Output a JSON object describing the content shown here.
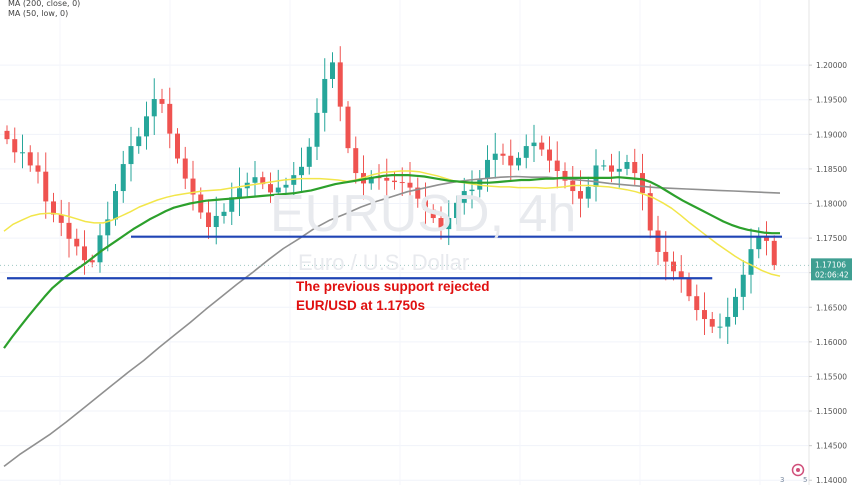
{
  "legend": {
    "ma200": "MA (200, close, 0)",
    "ma50": "MA (50, low, 0)"
  },
  "watermark": {
    "symbol": "EURUSD, 4h",
    "description": "Euro / U.S. Dollar"
  },
  "annotation": {
    "line1": "The previous support rejected",
    "line2": "EUR/USD at 1.1750s"
  },
  "price_label": {
    "value": "1.17106",
    "countdown": "02:06:42"
  },
  "colors": {
    "up": "#26a69a",
    "down": "#ef5350",
    "ma50": "#2ca02c",
    "ma_yellow": "#f2e64a",
    "ma200": "#909090",
    "level_line": "#1f44b5",
    "annotation": "#e01010"
  },
  "chart_data": {
    "type": "candlestick",
    "y_ticks": [
      "1.20000",
      "1.19500",
      "1.19000",
      "1.18500",
      "1.18000",
      "1.17500",
      "1.17000",
      "1.16500",
      "1.16000",
      "1.15500",
      "1.15000",
      "1.14500",
      "1.14000"
    ],
    "ylim": [
      1.1396,
      1.2045
    ],
    "levels": [
      {
        "name": "resistance",
        "price": 1.1752,
        "from_bar": 16,
        "to_bar": 100
      },
      {
        "name": "support",
        "price": 1.1692,
        "from_bar": 0,
        "to_bar": 91
      }
    ],
    "last_price": 1.17106,
    "closes": [
      1.1893,
      1.1874,
      1.1874,
      1.1855,
      1.1846,
      1.1803,
      1.1784,
      1.1772,
      1.1749,
      1.1738,
      1.1718,
      1.1715,
      1.1754,
      1.1777,
      1.1818,
      1.1857,
      1.1883,
      1.1897,
      1.1926,
      1.1951,
      1.1944,
      1.1901,
      1.1865,
      1.1836,
      1.1813,
      1.1787,
      1.1766,
      1.1782,
      1.1788,
      1.1809,
      1.1822,
      1.183,
      1.1838,
      1.1828,
      1.1816,
      1.1823,
      1.1827,
      1.1841,
      1.1853,
      1.1882,
      1.1931,
      1.198,
      1.2004,
      1.194,
      1.188,
      1.1844,
      1.1829,
      1.1838,
      1.1837,
      1.1833,
      1.1831,
      1.183,
      1.1823,
      1.1807,
      1.1791,
      1.1779,
      1.1763,
      1.1779,
      1.1801,
      1.1818,
      1.182,
      1.1836,
      1.1863,
      1.1872,
      1.1869,
      1.1855,
      1.1866,
      1.1883,
      1.1888,
      1.1878,
      1.1862,
      1.1847,
      1.1833,
      1.1818,
      1.1807,
      1.1824,
      1.1855,
      1.1855,
      1.1846,
      1.185,
      1.186,
      1.1844,
      1.1815,
      1.1761,
      1.173,
      1.1716,
      1.1702,
      1.1692,
      1.1666,
      1.1646,
      1.1633,
      1.1622,
      1.1622,
      1.1636,
      1.1665,
      1.1697,
      1.1734,
      1.1751,
      1.1746,
      1.1711
    ],
    "ma50": [
      1.1591,
      1.1607,
      1.1622,
      1.1637,
      1.1651,
      1.1665,
      1.1678,
      1.1688,
      1.1697,
      1.1705,
      1.1713,
      1.1722,
      1.1731,
      1.1739,
      1.1747,
      1.1755,
      1.1763,
      1.177,
      1.1777,
      1.1783,
      1.1789,
      1.1794,
      1.1797,
      1.18,
      1.1802,
      1.1804,
      1.1805,
      1.1806,
      1.1807,
      1.1808,
      1.1809,
      1.181,
      1.1811,
      1.1812,
      1.1813,
      1.1814,
      1.1815,
      1.1817,
      1.1819,
      1.1822,
      1.1825,
      1.1828,
      1.183,
      1.1832,
      1.1834,
      1.1836,
      1.1838,
      1.184,
      1.1841,
      1.1841,
      1.1841,
      1.184,
      1.1839,
      1.1837,
      1.1835,
      1.1833,
      1.1832,
      1.1831,
      1.183,
      1.183,
      1.183,
      1.1831,
      1.1832,
      1.1833,
      1.1834,
      1.1834,
      1.1835,
      1.1836,
      1.1836,
      1.1837,
      1.1837,
      1.1837,
      1.1837,
      1.1837,
      1.1837,
      1.1837,
      1.1838,
      1.1837,
      1.1836,
      1.1835,
      1.1831,
      1.1825,
      1.1818,
      1.1811,
      1.1804,
      1.1798,
      1.1792,
      1.1786,
      1.178,
      1.1774,
      1.1769,
      1.1765,
      1.1762,
      1.176,
      1.1758,
      1.1757,
      1.1757
    ],
    "ma_yellow": [
      1.176,
      1.177,
      1.1776,
      1.1782,
      1.1785,
      1.1786,
      1.1785,
      1.1782,
      1.1778,
      1.1774,
      1.1772,
      1.1772,
      1.1776,
      1.1782,
      1.1788,
      1.1795,
      1.18,
      1.1805,
      1.1809,
      1.1812,
      1.1814,
      1.1816,
      1.1818,
      1.1819,
      1.182,
      1.1822,
      1.1824,
      1.1826,
      1.1828,
      1.183,
      1.1832,
      1.1834,
      1.1835,
      1.1836,
      1.1836,
      1.1836,
      1.1835,
      1.1834,
      1.1832,
      1.1834,
      1.1838,
      1.1842,
      1.1845,
      1.1846,
      1.1847,
      1.1847,
      1.1846,
      1.1843,
      1.184,
      1.1836,
      1.1832,
      1.183,
      1.1828,
      1.1826,
      1.1825,
      1.1824,
      1.1824,
      1.1823,
      1.1823,
      1.1823,
      1.1822,
      1.1823,
      1.1824,
      1.1826,
      1.1826,
      1.1826,
      1.1825,
      1.1824,
      1.1822,
      1.182,
      1.1817,
      1.1813,
      1.1808,
      1.1801,
      1.1793,
      1.1783,
      1.1772,
      1.1762,
      1.1752,
      1.1742,
      1.1733,
      1.1724,
      1.1716,
      1.171,
      1.1703,
      1.1698,
      1.1695
    ],
    "ma200": [
      1.142,
      1.1437,
      1.1452,
      1.1467,
      1.1484,
      1.1502,
      1.152,
      1.1538,
      1.1556,
      1.1573,
      1.1592,
      1.161,
      1.1628,
      1.1647,
      1.1665,
      1.1683,
      1.17,
      1.1718,
      1.1735,
      1.1749,
      1.1764,
      1.1776,
      1.1785,
      1.1795,
      1.1803,
      1.181,
      1.1817,
      1.1822,
      1.1827,
      1.1831,
      1.1834,
      1.1836,
      1.1838,
      1.1839,
      1.1838,
      1.1838,
      1.1836,
      1.1834,
      1.1832,
      1.1829,
      1.1827,
      1.1825,
      1.1823,
      1.1822,
      1.1821,
      1.182,
      1.1819,
      1.1818,
      1.1817,
      1.1816,
      1.1815
    ]
  }
}
